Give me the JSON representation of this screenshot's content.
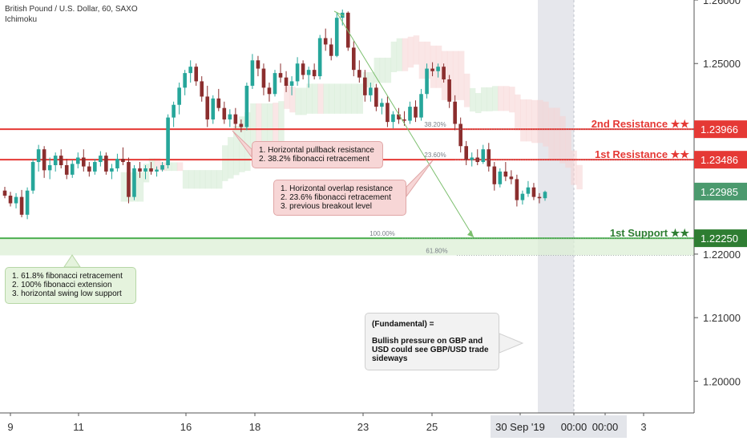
{
  "header": {
    "symbol": "British Pound / U.S. Dollar, 60, SAXO",
    "indicator": "Ichimoku"
  },
  "colors": {
    "up": "#26a69a",
    "down": "#8b2e2e",
    "resistance": "#e53935",
    "support": "#4caf50",
    "current": "#4b9a6e",
    "fib_arrow": "#7cbf6e"
  },
  "chart_data": {
    "type": "candlestick",
    "ylim": [
      1.195,
      1.26
    ],
    "y_ticks": [
      {
        "value": 1.26,
        "label": "1.26000"
      },
      {
        "value": 1.25,
        "label": "1.25000"
      },
      {
        "value": 1.22,
        "label": "1.22000"
      },
      {
        "value": 1.21,
        "label": "1.21000"
      },
      {
        "value": 1.2,
        "label": "1.20000"
      }
    ],
    "x_ticks": [
      "9",
      "11",
      "16",
      "18",
      "23",
      "25",
      "30 Sep '19",
      "00:00",
      "00:00",
      "3"
    ],
    "levels": [
      {
        "name": "2nd Resistance ★★",
        "value": 1.23966,
        "label": "1.23966",
        "kind": "resistance"
      },
      {
        "name": "1st Resistance ★★",
        "value": 1.23486,
        "label": "1.23486",
        "kind": "resistance"
      },
      {
        "name": "1st Support ★★",
        "value": 1.2225,
        "label": "1.22250",
        "kind": "support"
      }
    ],
    "current_price": {
      "value": 1.22985,
      "label": "1.22985"
    },
    "fib_labels": [
      {
        "label": "38.20%",
        "value": 1.23966
      },
      {
        "label": "23.60%",
        "value": 1.23486
      },
      {
        "label": "100.00%",
        "value": 1.2225
      },
      {
        "label": "61.80%",
        "value": 1.2198
      }
    ],
    "candles": [
      [
        1.23,
        1.2306,
        1.2288,
        1.2292
      ],
      [
        1.2292,
        1.2298,
        1.2275,
        1.228
      ],
      [
        1.228,
        1.2296,
        1.2272,
        1.229
      ],
      [
        1.229,
        1.2301,
        1.2258,
        1.2262
      ],
      [
        1.2262,
        1.2305,
        1.2255,
        1.23
      ],
      [
        1.23,
        1.235,
        1.2295,
        1.2345
      ],
      [
        1.2345,
        1.2372,
        1.233,
        1.2365
      ],
      [
        1.2365,
        1.237,
        1.232,
        1.2332
      ],
      [
        1.2332,
        1.2352,
        1.2318,
        1.234
      ],
      [
        1.234,
        1.236,
        1.233,
        1.2355
      ],
      [
        1.2355,
        1.2365,
        1.2335,
        1.234
      ],
      [
        1.234,
        1.235,
        1.2318,
        1.2325
      ],
      [
        1.2325,
        1.2348,
        1.232,
        1.2342
      ],
      [
        1.2342,
        1.236,
        1.2335,
        1.2352
      ],
      [
        1.2352,
        1.2365,
        1.233,
        1.2338
      ],
      [
        1.2338,
        1.2345,
        1.2322,
        1.233
      ],
      [
        1.233,
        1.235,
        1.2325,
        1.2345
      ],
      [
        1.2345,
        1.2362,
        1.2338,
        1.2355
      ],
      [
        1.2355,
        1.236,
        1.2325,
        1.233
      ],
      [
        1.233,
        1.2342,
        1.2318,
        1.2335
      ],
      [
        1.2335,
        1.2358,
        1.233,
        1.235
      ],
      [
        1.235,
        1.2368,
        1.234,
        1.2345
      ],
      [
        1.2345,
        1.2352,
        1.228,
        1.229
      ],
      [
        1.229,
        1.234,
        1.2285,
        1.2335
      ],
      [
        1.2335,
        1.2345,
        1.232,
        1.233
      ],
      [
        1.233,
        1.234,
        1.2318,
        1.2335
      ],
      [
        1.2335,
        1.2345,
        1.2325,
        1.233
      ],
      [
        1.233,
        1.2338,
        1.2322,
        1.2333
      ],
      [
        1.2333,
        1.2345,
        1.233,
        1.234
      ],
      [
        1.234,
        1.242,
        1.2335,
        1.2415
      ],
      [
        1.2415,
        1.244,
        1.24,
        1.2435
      ],
      [
        1.2435,
        1.247,
        1.242,
        1.2462
      ],
      [
        1.2462,
        1.249,
        1.245,
        1.2485
      ],
      [
        1.2485,
        1.2505,
        1.247,
        1.2495
      ],
      [
        1.2495,
        1.25,
        1.2465,
        1.2472
      ],
      [
        1.2472,
        1.248,
        1.244,
        1.2448
      ],
      [
        1.2448,
        1.2465,
        1.24,
        1.2412
      ],
      [
        1.2412,
        1.245,
        1.2405,
        1.2445
      ],
      [
        1.2445,
        1.246,
        1.2425,
        1.243
      ],
      [
        1.243,
        1.244,
        1.2405,
        1.2412
      ],
      [
        1.2412,
        1.2428,
        1.24,
        1.242
      ],
      [
        1.242,
        1.243,
        1.2398,
        1.2405
      ],
      [
        1.2405,
        1.2412,
        1.2392,
        1.24
      ],
      [
        1.24,
        1.247,
        1.2395,
        1.2465
      ],
      [
        1.2465,
        1.2515,
        1.246,
        1.2505
      ],
      [
        1.2505,
        1.2512,
        1.248,
        1.2492
      ],
      [
        1.2492,
        1.25,
        1.245,
        1.2462
      ],
      [
        1.2462,
        1.247,
        1.244,
        1.2452
      ],
      [
        1.2452,
        1.249,
        1.2448,
        1.2485
      ],
      [
        1.2485,
        1.25,
        1.247,
        1.2478
      ],
      [
        1.2478,
        1.2488,
        1.2455,
        1.2465
      ],
      [
        1.2465,
        1.248,
        1.245,
        1.2472
      ],
      [
        1.2472,
        1.251,
        1.2465,
        1.25
      ],
      [
        1.25,
        1.2505,
        1.2475,
        1.2482
      ],
      [
        1.2482,
        1.2495,
        1.2462,
        1.249
      ],
      [
        1.249,
        1.25,
        1.2475,
        1.248
      ],
      [
        1.248,
        1.2545,
        1.2475,
        1.254
      ],
      [
        1.254,
        1.2555,
        1.252,
        1.253
      ],
      [
        1.253,
        1.254,
        1.2505,
        1.2512
      ],
      [
        1.2512,
        1.258,
        1.251,
        1.2572
      ],
      [
        1.2572,
        1.2585,
        1.256,
        1.258
      ],
      [
        1.258,
        1.2582,
        1.252,
        1.2525
      ],
      [
        1.2525,
        1.2535,
        1.248,
        1.249
      ],
      [
        1.249,
        1.2505,
        1.247,
        1.2478
      ],
      [
        1.2478,
        1.249,
        1.244,
        1.245
      ],
      [
        1.245,
        1.247,
        1.244,
        1.2462
      ],
      [
        1.2462,
        1.2468,
        1.2425,
        1.2432
      ],
      [
        1.2432,
        1.2445,
        1.242,
        1.2438
      ],
      [
        1.2438,
        1.2448,
        1.24,
        1.2408
      ],
      [
        1.2408,
        1.2425,
        1.2398,
        1.242
      ],
      [
        1.242,
        1.243,
        1.2405,
        1.2412
      ],
      [
        1.2412,
        1.2425,
        1.2402,
        1.241
      ],
      [
        1.241,
        1.244,
        1.2405,
        1.2432
      ],
      [
        1.2432,
        1.2442,
        1.2408,
        1.2415
      ],
      [
        1.2415,
        1.246,
        1.241,
        1.2452
      ],
      [
        1.2452,
        1.25,
        1.2445,
        1.2492
      ],
      [
        1.2492,
        1.2502,
        1.248,
        1.2488
      ],
      [
        1.2488,
        1.25,
        1.2478,
        1.2495
      ],
      [
        1.2495,
        1.25,
        1.247,
        1.2475
      ],
      [
        1.2475,
        1.2482,
        1.243,
        1.244
      ],
      [
        1.244,
        1.245,
        1.2395,
        1.2405
      ],
      [
        1.2405,
        1.2415,
        1.236,
        1.237
      ],
      [
        1.237,
        1.2378,
        1.234,
        1.2348
      ],
      [
        1.2348,
        1.236,
        1.2338,
        1.2352
      ],
      [
        1.2352,
        1.2365,
        1.234,
        1.2345
      ],
      [
        1.2345,
        1.2372,
        1.2342,
        1.2365
      ],
      [
        1.2365,
        1.2375,
        1.233,
        1.2338
      ],
      [
        1.2338,
        1.2345,
        1.23,
        1.231
      ],
      [
        1.231,
        1.2335,
        1.2305,
        1.233
      ],
      [
        1.233,
        1.2345,
        1.2315,
        1.2322
      ],
      [
        1.2322,
        1.2332,
        1.231,
        1.2318
      ],
      [
        1.2318,
        1.2325,
        1.2275,
        1.2285
      ],
      [
        1.2285,
        1.23,
        1.2278,
        1.2295
      ],
      [
        1.2295,
        1.2315,
        1.229,
        1.2305
      ],
      [
        1.2305,
        1.2312,
        1.2285,
        1.229
      ],
      [
        1.229,
        1.2296,
        1.228,
        1.2288
      ],
      [
        1.2288,
        1.23,
        1.2284,
        1.2298
      ]
    ]
  },
  "callouts": {
    "pullback": {
      "lines": [
        "1. Horizontal pullback resistance",
        "2. 38.2% fibonacci retracement"
      ]
    },
    "overlap": {
      "lines": [
        "1. Horizontal overlap resistance",
        "2. 23.6% fibonacci retracement",
        "3. previous breakout level"
      ]
    },
    "support": {
      "lines": [
        "1. 61.8% fibonacci retracement",
        "2. 100% fibonacci extension",
        "3. horizontal swing low support"
      ]
    },
    "fundamental": {
      "title": "(Fundamental) =",
      "lines": [
        "Bullish pressure on GBP and",
        "USD could see GBP/USD trade",
        "sideways"
      ]
    }
  }
}
